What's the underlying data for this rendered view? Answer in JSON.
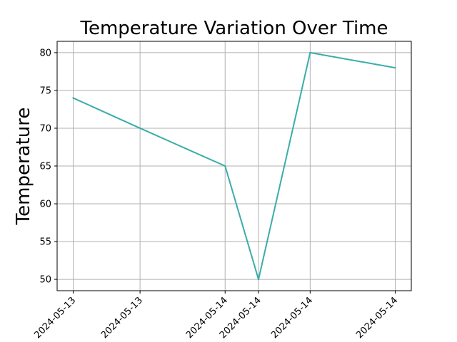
{
  "chart_data": {
    "type": "line",
    "title": "Temperature Variation Over Time",
    "xlabel": "",
    "ylabel": "Temperature",
    "x": [
      "2024-05-13T01:00:00",
      "2024-05-13T12:00:00",
      "2024-05-14T02:00:00",
      "2024-05-14T07:30:00",
      "2024-05-14T16:00:00",
      "2024-05-15T06:00:00"
    ],
    "x_tick_labels": [
      "2024-05-13",
      "2024-05-13",
      "2024-05-14",
      "2024-05-14",
      "2024-05-14",
      "2024-05-14"
    ],
    "series": [
      {
        "values": [
          74,
          70,
          65,
          50,
          80,
          78
        ],
        "color": "#3aada8"
      }
    ],
    "yticks": [
      50,
      55,
      60,
      65,
      70,
      75,
      80
    ],
    "ylim": [
      48.5,
      81.5
    ],
    "grid": true,
    "legend": "none"
  }
}
